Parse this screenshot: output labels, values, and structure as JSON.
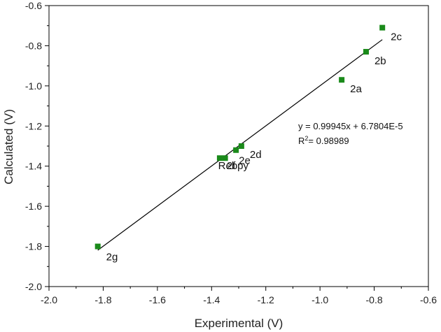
{
  "chart_data": {
    "type": "scatter",
    "xlabel": "Experimental (V)",
    "ylabel": "Calculated (V)",
    "xlim": [
      -2.0,
      -0.6
    ],
    "ylim": [
      -2.0,
      -0.6
    ],
    "x_ticks": [
      -2.0,
      -1.8,
      -1.6,
      -1.4,
      -1.2,
      -1.0,
      -0.8,
      -0.6
    ],
    "y_ticks": [
      -2.0,
      -1.8,
      -1.6,
      -1.4,
      -1.2,
      -1.0,
      -0.8,
      -0.6
    ],
    "x_tick_labels": [
      "-2.0",
      "-1.8",
      "-1.6",
      "-1.4",
      "-1.2",
      "-1.0",
      "-0.8",
      "-0.6"
    ],
    "y_tick_labels": [
      "-2.0",
      "-1.8",
      "-1.6",
      "-1.4",
      "-1.2",
      "-1.0",
      "-0.8",
      "-0.6"
    ],
    "marker_color": "#1a8a1a",
    "series": [
      {
        "name": "compounds",
        "points": [
          {
            "label": "2c",
            "x": -0.77,
            "y": -0.71
          },
          {
            "label": "2b",
            "x": -0.83,
            "y": -0.83
          },
          {
            "label": "2a",
            "x": -0.92,
            "y": -0.97
          },
          {
            "label": "2d",
            "x": -1.29,
            "y": -1.3
          },
          {
            "label": "2e",
            "x": -1.31,
            "y": -1.32
          },
          {
            "label": "2f",
            "x": -1.37,
            "y": -1.36
          },
          {
            "label": "Rebpy",
            "x": -1.35,
            "y": -1.36
          },
          {
            "label": "2g",
            "x": -1.82,
            "y": -1.8
          }
        ]
      }
    ],
    "fit_line": {
      "slope": 0.99945,
      "intercept": 6.7804e-05,
      "x_range": [
        -1.82,
        -0.77
      ]
    },
    "equation_text": "y = 0.99945x + 6.7804E-5",
    "r2_label": "R",
    "r2_sup": "2",
    "r2_value": "= 0.98989"
  }
}
